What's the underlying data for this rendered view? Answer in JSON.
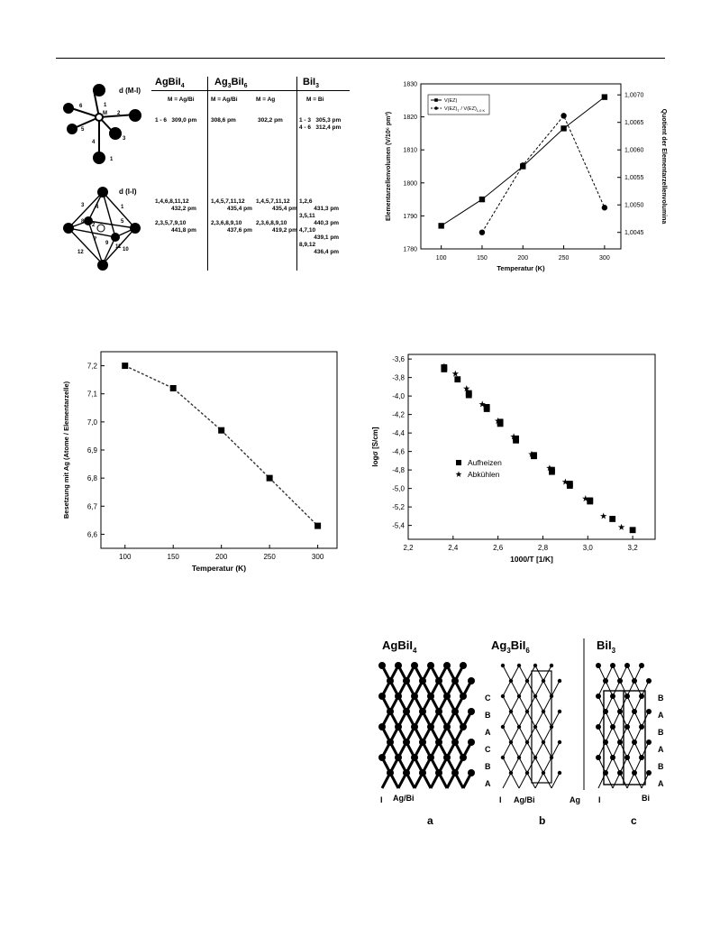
{
  "fig1": {
    "dml_label": "d (M-I)",
    "dii_label": "d (I-I)",
    "oct_nums": [
      "6",
      "1",
      "2",
      "3",
      "4",
      "5",
      "1",
      "M"
    ],
    "cl_nums": [
      "3",
      "4",
      "1",
      "2",
      "8",
      "5",
      "7",
      "9",
      "11",
      "10",
      "12"
    ],
    "cols": [
      {
        "head": "AgBiI",
        "sub": "4"
      },
      {
        "head": "Ag",
        "sub": "3",
        "mid": "BiI",
        "sub2": "6"
      },
      {
        "head": "BiI",
        "sub": "3"
      }
    ],
    "row1": {
      "c1a": "M = Ag/Bi",
      "c2a": "M = Ag/Bi",
      "c2b": "M = Ag",
      "c3a": "M = Bi",
      "v1": "1 - 6   309,0 pm",
      "v2": "308,6 pm",
      "v3": "302,2 pm",
      "v4": "1 - 3   305,3 pm\n4 - 6   312,4 pm"
    },
    "row2": {
      "c1": "1,4,6,8,11,12\n          432,2 pm\n\n2,3,5,7,9,10\n          441,8 pm",
      "c2": "1,4,5,7,11,12\n          435,4 pm\n\n2,3,6,8,9,10\n          437,6 pm",
      "c3": "1,4,5,7,11,12\n          435,4 pm\n\n2,3,6,8,9,10\n          419,2 pm",
      "c4": "1,2,6\n         431,3 pm\n3,5,11\n         440,3 pm\n4,7,10\n         439,1 pm\n8,9,12\n         436,4 pm"
    }
  },
  "chart_data": [
    {
      "type": "line",
      "xlabel": "Temperatur (K)",
      "ylabel": "Elementarzellenvolumen (V/10⁶ pm³)",
      "ylabel2": "Quotient der Elementarzellenvolumina",
      "xlim": [
        75,
        320
      ],
      "ylim": [
        1780,
        1830
      ],
      "ylim2": [
        1.0042,
        1.0072
      ],
      "xticks": [
        "100",
        "150",
        "200",
        "250",
        "300"
      ],
      "yticks": [
        "1780",
        "1790",
        "1800",
        "1810",
        "1820",
        "1830"
      ],
      "yticks2": [
        "1,0045",
        "1,0050",
        "1,0055",
        "1,0060",
        "1,0065",
        "1,0070"
      ],
      "legend": [
        "V(EZ)",
        "V(EZ) / V(EZ)"
      ],
      "legend_sub": [
        "T",
        "1,0 K"
      ],
      "series": [
        {
          "name": "V(EZ)",
          "x": [
            100,
            150,
            200,
            250,
            300
          ],
          "y": [
            1787,
            1795,
            1805,
            1816.5,
            1826
          ],
          "axis": "left",
          "marker": "square",
          "style": "solid"
        },
        {
          "x": [
            150,
            200,
            250,
            300
          ],
          "y": [
            1.0045,
            1.00572,
            1.00662,
            1.00495
          ],
          "axis": "right",
          "marker": "circle",
          "style": "dashed"
        }
      ]
    },
    {
      "type": "line",
      "xlabel": "Temperatur (K)",
      "ylabel": "Besetzung mit Ag (Atome / Elementarzelle)",
      "xlim": [
        75,
        320
      ],
      "ylim": [
        6.55,
        7.25
      ],
      "xticks": [
        "100",
        "150",
        "200",
        "250",
        "300"
      ],
      "yticks": [
        "6,6",
        "6,7",
        "6,8",
        "6,9",
        "7,0",
        "7,1",
        "7,2"
      ],
      "series": [
        {
          "x": [
            100,
            150,
            200,
            250,
            300
          ],
          "y": [
            7.2,
            7.12,
            6.97,
            6.8,
            6.63
          ],
          "marker": "square",
          "style": "dashed"
        }
      ]
    },
    {
      "type": "scatter",
      "xlabel": "1000/T [1/K]",
      "ylabel": "logσ [S/cm]",
      "xlim": [
        2.2,
        3.3
      ],
      "ylim": [
        -5.55,
        -3.55
      ],
      "xticks": [
        "2,2",
        "2,4",
        "2,6",
        "2,8",
        "3,0",
        "3,2"
      ],
      "yticks": [
        "-3,6",
        "-3,8",
        "-4,0",
        "-4,2",
        "-4,4",
        "-4,6",
        "-4,8",
        "-5,0",
        "-5,2",
        "-5,4"
      ],
      "legend": [
        "Aufheizen",
        "Abkühlen"
      ],
      "series": [
        {
          "name": "Aufheizen",
          "marker": "square",
          "x": [
            2.36,
            2.36,
            2.42,
            2.47,
            2.47,
            2.55,
            2.55,
            2.61,
            2.61,
            2.68,
            2.68,
            2.76,
            2.76,
            2.84,
            2.84,
            2.92,
            2.92,
            3.01,
            3.01,
            3.11,
            3.2
          ],
          "y": [
            -3.69,
            -3.71,
            -3.82,
            -3.97,
            -3.99,
            -4.12,
            -4.14,
            -4.28,
            -4.3,
            -4.46,
            -4.48,
            -4.64,
            -4.65,
            -4.8,
            -4.82,
            -4.95,
            -4.97,
            -5.13,
            -5.14,
            -5.33,
            -5.45
          ]
        },
        {
          "name": "Abkühlen",
          "marker": "star",
          "x": [
            2.36,
            2.41,
            2.46,
            2.53,
            2.6,
            2.67,
            2.75,
            2.83,
            2.9,
            2.99,
            3.07,
            3.15
          ],
          "y": [
            -3.68,
            -3.76,
            -3.92,
            -4.09,
            -4.27,
            -4.44,
            -4.63,
            -4.78,
            -4.93,
            -5.11,
            -5.3,
            -5.42
          ]
        }
      ]
    }
  ],
  "fig4": {
    "headers": [
      {
        "a": "AgBiI",
        "s": "4"
      },
      {
        "a": "Ag",
        "s": "3",
        "b": "BiI",
        "s2": "6"
      },
      {
        "a": "BiI",
        "s": "3"
      }
    ],
    "stack_b": [
      "C",
      "B",
      "A",
      "C",
      "B",
      "A"
    ],
    "stack_c": [
      "B",
      "A",
      "B",
      "A",
      "B",
      "A"
    ],
    "labels_a": [
      "I",
      "Ag/Bi"
    ],
    "labels_b": [
      "I",
      "Ag/Bi",
      "Ag"
    ],
    "labels_c": [
      "I",
      "Bi"
    ],
    "captions": [
      "a",
      "b",
      "c"
    ]
  }
}
